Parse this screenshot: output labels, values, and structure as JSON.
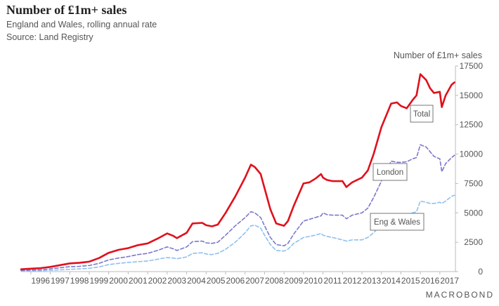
{
  "header": {
    "title": "Number of £1m+ sales",
    "subtitle": "England and Wales, rolling annual rate",
    "source": "Source: Land Registry",
    "ylabel": "Number of £1m+ sales",
    "brand": "MACROBOND"
  },
  "colors": {
    "total": "#e0101b",
    "london": "#7b78cc",
    "eng_wales": "#8ec0ef",
    "axis": "#bbbbbb",
    "text": "#555555"
  },
  "chart_data": {
    "type": "line",
    "title": "Number of £1m+ sales",
    "ylabel": "Number of £1m+ sales",
    "xlabel": "",
    "ylim": [
      0,
      17500
    ],
    "xlim": [
      1995.5,
      2017.8
    ],
    "y_axis_position": "right",
    "grid": false,
    "legend": "none",
    "xticks": [
      "1996",
      "1997",
      "1998",
      "1999",
      "2000",
      "2001",
      "2002",
      "2003",
      "2004",
      "2005",
      "2006",
      "2007",
      "2008",
      "2009",
      "2010",
      "2011",
      "2012",
      "2013",
      "2014",
      "2015",
      "2016",
      "2017"
    ],
    "yticks": [
      "0",
      "2500",
      "5000",
      "7500",
      "10000",
      "12500",
      "15000",
      "17500"
    ],
    "series": [
      {
        "name": "Total",
        "style": "solid",
        "x": [
          1995.5,
          1996,
          1996.5,
          1997,
          1997.5,
          1998,
          1998.5,
          1999,
          1999.5,
          2000,
          2000.5,
          2001,
          2001.5,
          2002,
          2002.5,
          2003,
          2003.3,
          2003.5,
          2004,
          2004.3,
          2004.8,
          2005,
          2005.3,
          2005.6,
          2006,
          2006.5,
          2007,
          2007.3,
          2007.5,
          2007.8,
          2008,
          2008.3,
          2008.6,
          2009,
          2009.2,
          2009.5,
          2010,
          2010.3,
          2010.6,
          2010.9,
          2011,
          2011.2,
          2011.5,
          2012,
          2012.2,
          2012.5,
          2013,
          2013.3,
          2013.6,
          2014,
          2014.3,
          2014.5,
          2014.8,
          2015,
          2015.3,
          2015.6,
          2015.8,
          2016,
          2016.3,
          2016.5,
          2016.7,
          2017,
          2017.1,
          2017.3,
          2017.6,
          2017.75
        ],
        "values": [
          200,
          250,
          300,
          400,
          550,
          700,
          750,
          850,
          1150,
          1600,
          1850,
          2000,
          2250,
          2400,
          2800,
          3250,
          3050,
          2850,
          3300,
          4100,
          4150,
          3950,
          3850,
          4000,
          5000,
          6400,
          8000,
          9100,
          8900,
          8300,
          7100,
          5300,
          4100,
          3900,
          4300,
          5600,
          7500,
          7600,
          7900,
          8300,
          8000,
          7800,
          7700,
          7700,
          7200,
          7600,
          8000,
          8600,
          10000,
          12300,
          13500,
          14300,
          14400,
          14100,
          13900,
          14600,
          15000,
          16800,
          16300,
          15600,
          15200,
          15300,
          14000,
          15000,
          15900,
          16100
        ]
      },
      {
        "name": "London",
        "style": "dashed",
        "x": [
          1995.5,
          1996,
          1996.5,
          1997,
          1997.5,
          1998,
          1998.5,
          1999,
          1999.5,
          2000,
          2000.5,
          2001,
          2001.5,
          2002,
          2002.5,
          2003,
          2003.3,
          2003.5,
          2004,
          2004.3,
          2004.8,
          2005,
          2005.3,
          2005.6,
          2006,
          2006.5,
          2007,
          2007.3,
          2007.5,
          2007.8,
          2008,
          2008.3,
          2008.6,
          2009,
          2009.2,
          2009.5,
          2010,
          2010.3,
          2010.6,
          2010.9,
          2011,
          2011.2,
          2011.5,
          2012,
          2012.2,
          2012.5,
          2013,
          2013.3,
          2013.6,
          2014,
          2014.3,
          2014.5,
          2014.8,
          2015,
          2015.3,
          2015.6,
          2015.8,
          2016,
          2016.3,
          2016.5,
          2016.7,
          2017,
          2017.1,
          2017.3,
          2017.6,
          2017.75
        ],
        "values": [
          100,
          130,
          160,
          230,
          330,
          420,
          450,
          520,
          700,
          1000,
          1150,
          1280,
          1450,
          1550,
          1800,
          2100,
          1950,
          1800,
          2100,
          2550,
          2600,
          2450,
          2400,
          2500,
          3100,
          3900,
          4600,
          5100,
          5000,
          4600,
          3900,
          2900,
          2300,
          2200,
          2400,
          3200,
          4300,
          4450,
          4600,
          4750,
          5000,
          4850,
          4800,
          4800,
          4500,
          4800,
          5000,
          5400,
          6300,
          7700,
          8700,
          9400,
          9300,
          9300,
          9350,
          9600,
          9700,
          10800,
          10600,
          10200,
          9800,
          9600,
          8500,
          9200,
          9700,
          9900
        ]
      },
      {
        "name": "Eng & Wales",
        "style": "dashed",
        "x": [
          1995.5,
          1996,
          1996.5,
          1997,
          1997.5,
          1998,
          1998.5,
          1999,
          1999.5,
          2000,
          2000.5,
          2001,
          2001.5,
          2002,
          2002.5,
          2003,
          2003.3,
          2003.5,
          2004,
          2004.3,
          2004.8,
          2005,
          2005.3,
          2005.6,
          2006,
          2006.5,
          2007,
          2007.3,
          2007.5,
          2007.8,
          2008,
          2008.3,
          2008.6,
          2009,
          2009.2,
          2009.5,
          2010,
          2010.3,
          2010.6,
          2010.9,
          2011,
          2011.2,
          2011.5,
          2012,
          2012.2,
          2012.5,
          2013,
          2013.3,
          2013.6,
          2014,
          2014.3,
          2014.5,
          2014.8,
          2015,
          2015.3,
          2015.6,
          2015.8,
          2016,
          2016.3,
          2016.5,
          2016.7,
          2017,
          2017.1,
          2017.3,
          2017.6,
          2017.75
        ],
        "values": [
          50,
          60,
          80,
          110,
          150,
          200,
          230,
          280,
          400,
          600,
          700,
          780,
          850,
          900,
          1050,
          1200,
          1150,
          1100,
          1250,
          1550,
          1600,
          1500,
          1450,
          1550,
          1900,
          2500,
          3300,
          3900,
          3950,
          3700,
          3100,
          2300,
          1800,
          1750,
          1900,
          2400,
          2900,
          3000,
          3100,
          3250,
          3100,
          3000,
          2900,
          2700,
          2600,
          2700,
          2700,
          2900,
          3300,
          4000,
          4400,
          4800,
          4900,
          4900,
          4850,
          5000,
          5100,
          6000,
          5900,
          5800,
          5800,
          5900,
          5800,
          6000,
          6400,
          6500
        ]
      }
    ],
    "annotations": [
      {
        "label": "Total",
        "series": "Total"
      },
      {
        "label": "London",
        "series": "London"
      },
      {
        "label": "Eng & Wales",
        "series": "Eng & Wales"
      }
    ]
  }
}
